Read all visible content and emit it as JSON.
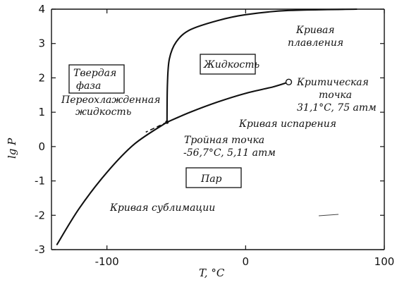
{
  "chart_data": {
    "type": "line",
    "xlabel": "T, °C",
    "ylabel": "lg P",
    "xlim": [
      -140,
      100
    ],
    "ylim": [
      -3,
      4
    ],
    "x_ticks": [
      -100,
      0,
      100
    ],
    "x_tick_labels": [
      "-100",
      "0",
      "100"
    ],
    "y_ticks": [
      4,
      3,
      2,
      1,
      0,
      -1,
      -2,
      -3
    ],
    "y_tick_labels": [
      "4",
      "3",
      "2",
      "1",
      "0",
      "-1",
      "-2",
      "-3"
    ],
    "grid": false,
    "series": [
      {
        "key": "sublimation",
        "points": [
          [
            -136,
            -2.85
          ],
          [
            -120,
            -1.8
          ],
          [
            -100,
            -0.75
          ],
          [
            -80,
            0.08
          ],
          [
            -56.7,
            0.71
          ]
        ]
      },
      {
        "key": "vaporization",
        "points": [
          [
            -56.7,
            0.71
          ],
          [
            -40,
            1.0
          ],
          [
            -20,
            1.3
          ],
          [
            0,
            1.55
          ],
          [
            20,
            1.74
          ],
          [
            31.1,
            1.88
          ]
        ]
      },
      {
        "key": "melting",
        "points": [
          [
            -56.7,
            0.71
          ],
          [
            -56.4,
            1.8
          ],
          [
            -55,
            2.55
          ],
          [
            -50,
            3.05
          ],
          [
            -40,
            3.4
          ],
          [
            -20,
            3.67
          ],
          [
            0,
            3.84
          ],
          [
            30,
            3.96
          ],
          [
            80,
            4.0
          ]
        ]
      },
      {
        "key": "supercooled",
        "dashed": true,
        "points": [
          [
            -56.7,
            0.71
          ],
          [
            -62,
            0.61
          ],
          [
            -72,
            0.42
          ]
        ]
      }
    ],
    "triple_point": [
      -56.7,
      0.71
    ],
    "critical_point": [
      31.1,
      1.88
    ],
    "annotations": {
      "solid_phase": [
        "Твердая",
        "фаза"
      ],
      "liquid": "Жидкость",
      "vapor": "Пар",
      "melting_curve": [
        "Кривая",
        "плавления"
      ],
      "critical_point": [
        "Критическая",
        "точка",
        "31,1°C, 75 атм"
      ],
      "supercooled_liquid": [
        "Переохлажденная",
        "жидкость"
      ],
      "vaporization_curve": "Кривая испарения",
      "triple_point": [
        "Тройная точка",
        "-56,7°C,  5,11 атм"
      ],
      "sublimation_curve": "Кривая сублимации"
    }
  }
}
